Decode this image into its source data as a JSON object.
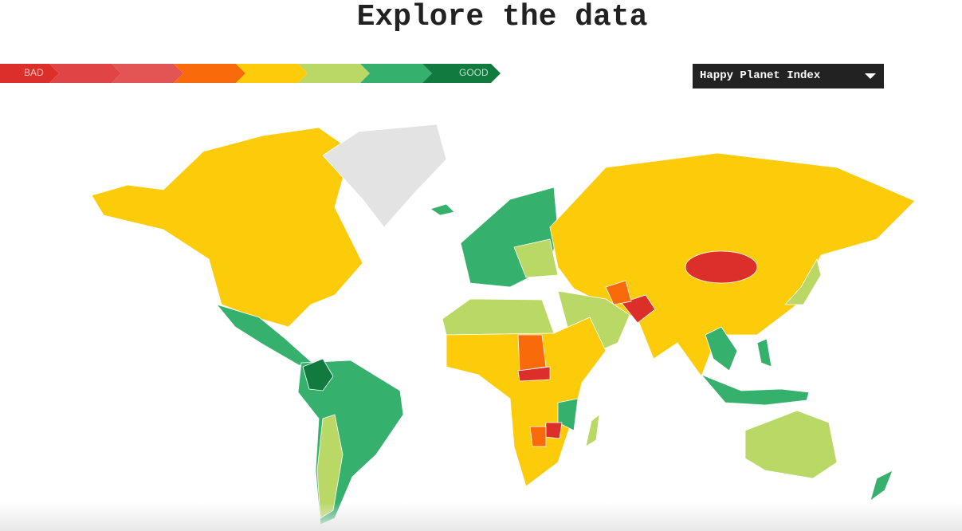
{
  "header": {
    "title": "Explore the data"
  },
  "legend": {
    "low": "BAD",
    "high": "GOOD"
  },
  "selector": {
    "label": "Happy Planet Index"
  }
}
